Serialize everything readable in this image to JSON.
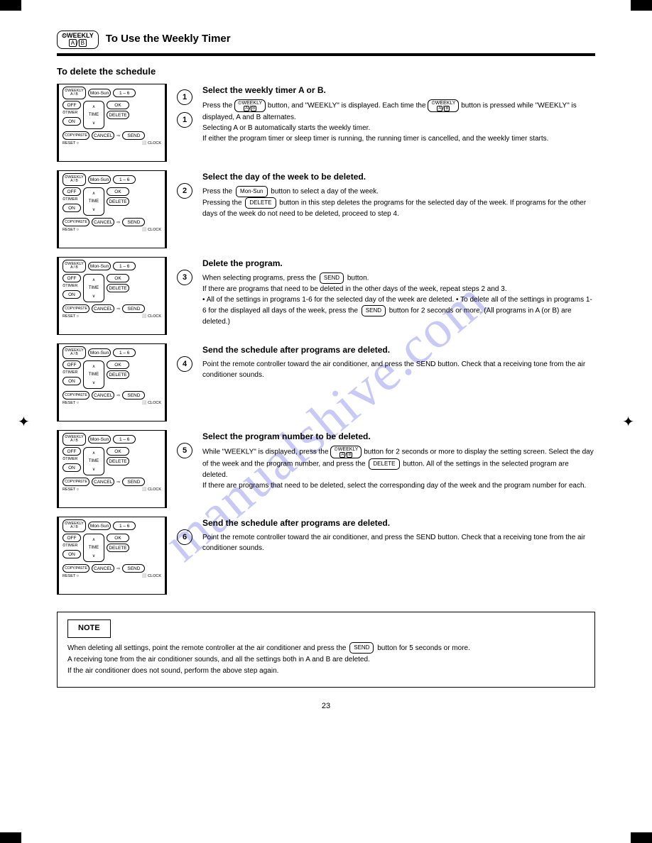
{
  "header": {
    "badge_line1": "⏲WEEKLY",
    "badge_a": "A",
    "badge_b": "B",
    "title": "To Use the Weekly Timer"
  },
  "subtitle": "To delete the schedule",
  "remote": {
    "weekly": "⏲WEEKLY",
    "ab": "A / B",
    "monSun": "Mon-Sun",
    "oneSix": "1 – 6",
    "off": "OFF",
    "timer": "⏲TIMER",
    "on": "ON",
    "time": "TIME",
    "ok": "OK",
    "delete": "DELETE",
    "copyPaste": "COPY/PASTE",
    "cancel": "CANCEL",
    "send": "SEND",
    "reset": "RESET ○",
    "clock": "⬜ CLOCK"
  },
  "steps": [
    {
      "num": "1",
      "title": "Select the weekly timer A or B.",
      "body_parts": [
        "Press the ",
        {
          "badge": true
        },
        " button, and \"WEEKLY\" is displayed.",
        " Each time the ",
        {
          "badge": true
        },
        " button is pressed while \"WEEKLY\" is displayed, A and B alternates."
      ],
      "extra": [
        "Selecting A or B automatically starts the weekly timer.",
        "If either the program timer or sleep timer is running, the running timer is cancelled, and the weekly timer starts."
      ]
    },
    {
      "num": "2",
      "title": "Select the day of the week to be deleted.",
      "body_parts": [
        "Press the ",
        {
          "btn": "Mon-Sun"
        },
        " button to select a day of the week."
      ],
      "extra_parts": [
        "Pressing the ",
        {
          "btn": "DELETE"
        },
        " button in this step deletes the programs for the selected day of the week. If programs for the other days of the week do not need to be deleted, proceed to step 4."
      ]
    },
    {
      "num": "3",
      "title": "Delete the program.",
      "body_parts": [
        "When selecting programs, press the ",
        {
          "btn": "SEND"
        },
        " button."
      ],
      "extra": [
        "If there are programs that need to be deleted in the other days of the week, repeat steps 2 and 3."
      ],
      "extra_parts2": [
        "• All of the settings in programs 1-6 for the selected day of the week are deleted.",
        " • To delete all of the settings in programs 1-6 for the displayed all days of the week, press the ",
        {
          "btn": "SEND"
        },
        " button for 2 seconds or more. (All programs in A (or B) are deleted.)"
      ]
    },
    {
      "num": "4",
      "title": "Send the schedule after programs are deleted.",
      "body_parts": [
        "Point the remote controller toward the air conditioner, and press the SEND button. Check that a receiving tone from the air conditioner sounds."
      ]
    },
    {
      "num": "5",
      "title": "Select the program number to be deleted.",
      "body_parts": [
        "While \"WEEKLY\" is displayed, press the ",
        {
          "badge": true
        },
        " button for 2 seconds or more to display the setting screen. Select the day of the week and the program number, and press the ",
        {
          "btn": "DELETE"
        },
        " button. All of the settings in the selected program are deleted."
      ],
      "extra": [
        "If there are programs that need to be deleted, select the corresponding day of the week and the program number for each."
      ]
    },
    {
      "num": "6",
      "title": "Send the schedule after programs are deleted.",
      "body_parts": [
        "Point the remote controller toward the air conditioner, and press the SEND button. Check that a receiving tone from the air conditioner sounds."
      ]
    }
  ],
  "note": {
    "label": "NOTE",
    "line1_parts": [
      "When deleting all settings, point the remote controller at the air conditioner and press the ",
      {
        "btn": "SEND"
      },
      " button for 5 seconds or more."
    ],
    "line2": "A receiving tone from the air conditioner sounds, and all the settings both in A and B are deleted.",
    "line3": "If the air conditioner does not sound, perform the above step again."
  },
  "page_num": "23",
  "watermark": "manualshive.com"
}
